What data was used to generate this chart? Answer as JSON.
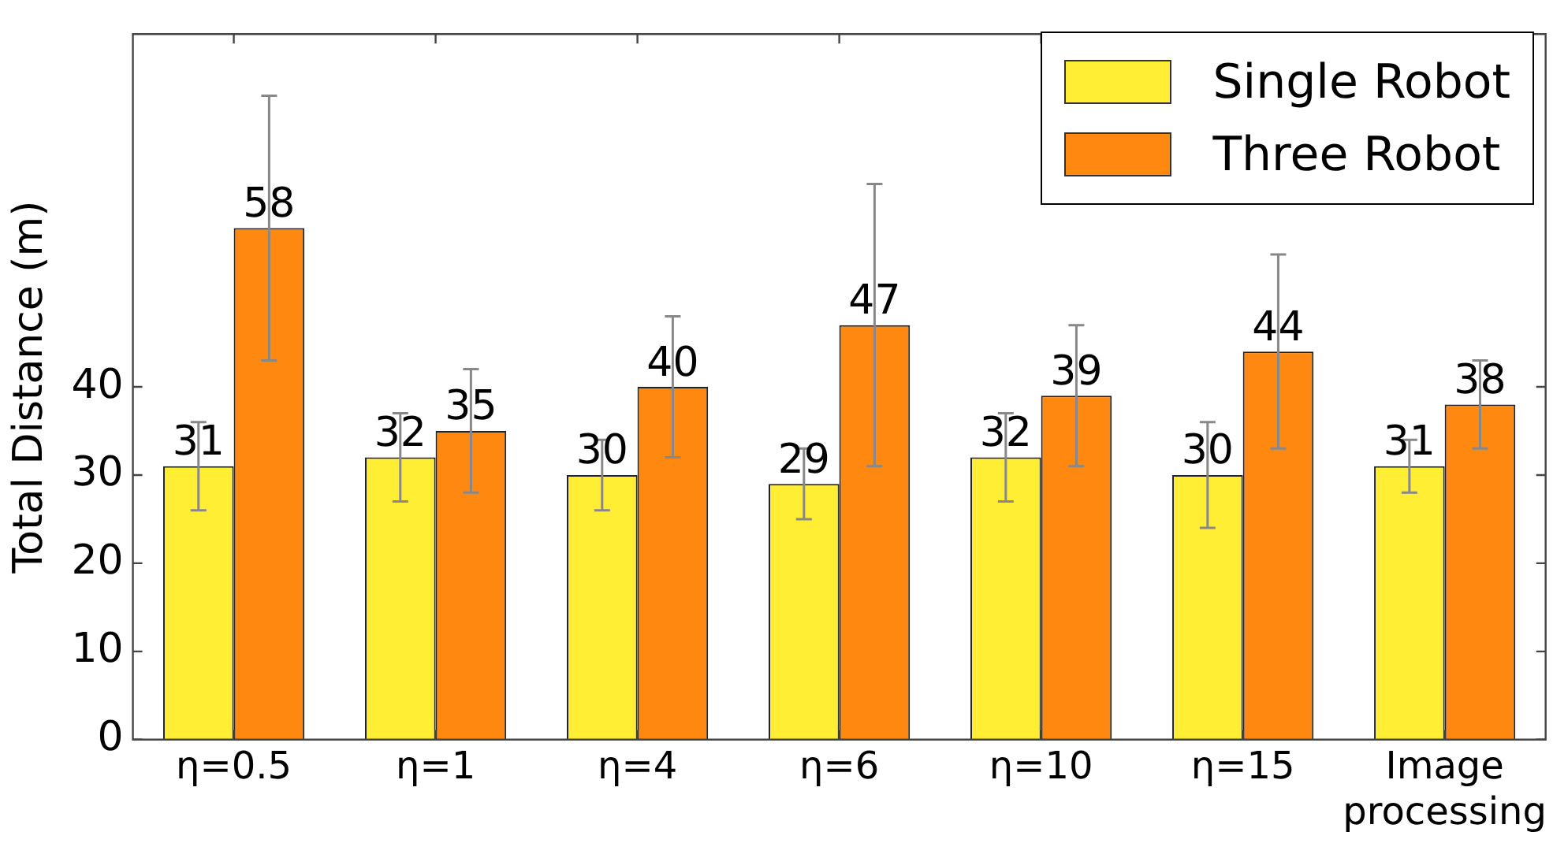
{
  "chart_data": {
    "type": "bar",
    "ylabel": "Total Distance (m)",
    "categories": [
      "η=0.5",
      "η=1",
      "η=4",
      "η=6",
      "η=10",
      "η=15",
      "Image processing"
    ],
    "series": [
      {
        "name": "Single Robot",
        "color": "#ffee33",
        "values": [
          31,
          32,
          30,
          29,
          32,
          30,
          31
        ],
        "errors": [
          5,
          5,
          4,
          4,
          5,
          6,
          3
        ]
      },
      {
        "name": "Three Robot",
        "color": "#ff8811",
        "values": [
          58,
          35,
          40,
          47,
          39,
          44,
          38
        ],
        "errors": [
          15,
          7,
          8,
          16,
          8,
          11,
          5
        ]
      }
    ],
    "ylim": [
      0,
      80
    ],
    "yticks": [
      0,
      10,
      20,
      30,
      40
    ],
    "grid": false,
    "legend": "top right",
    "data_labels": true
  }
}
